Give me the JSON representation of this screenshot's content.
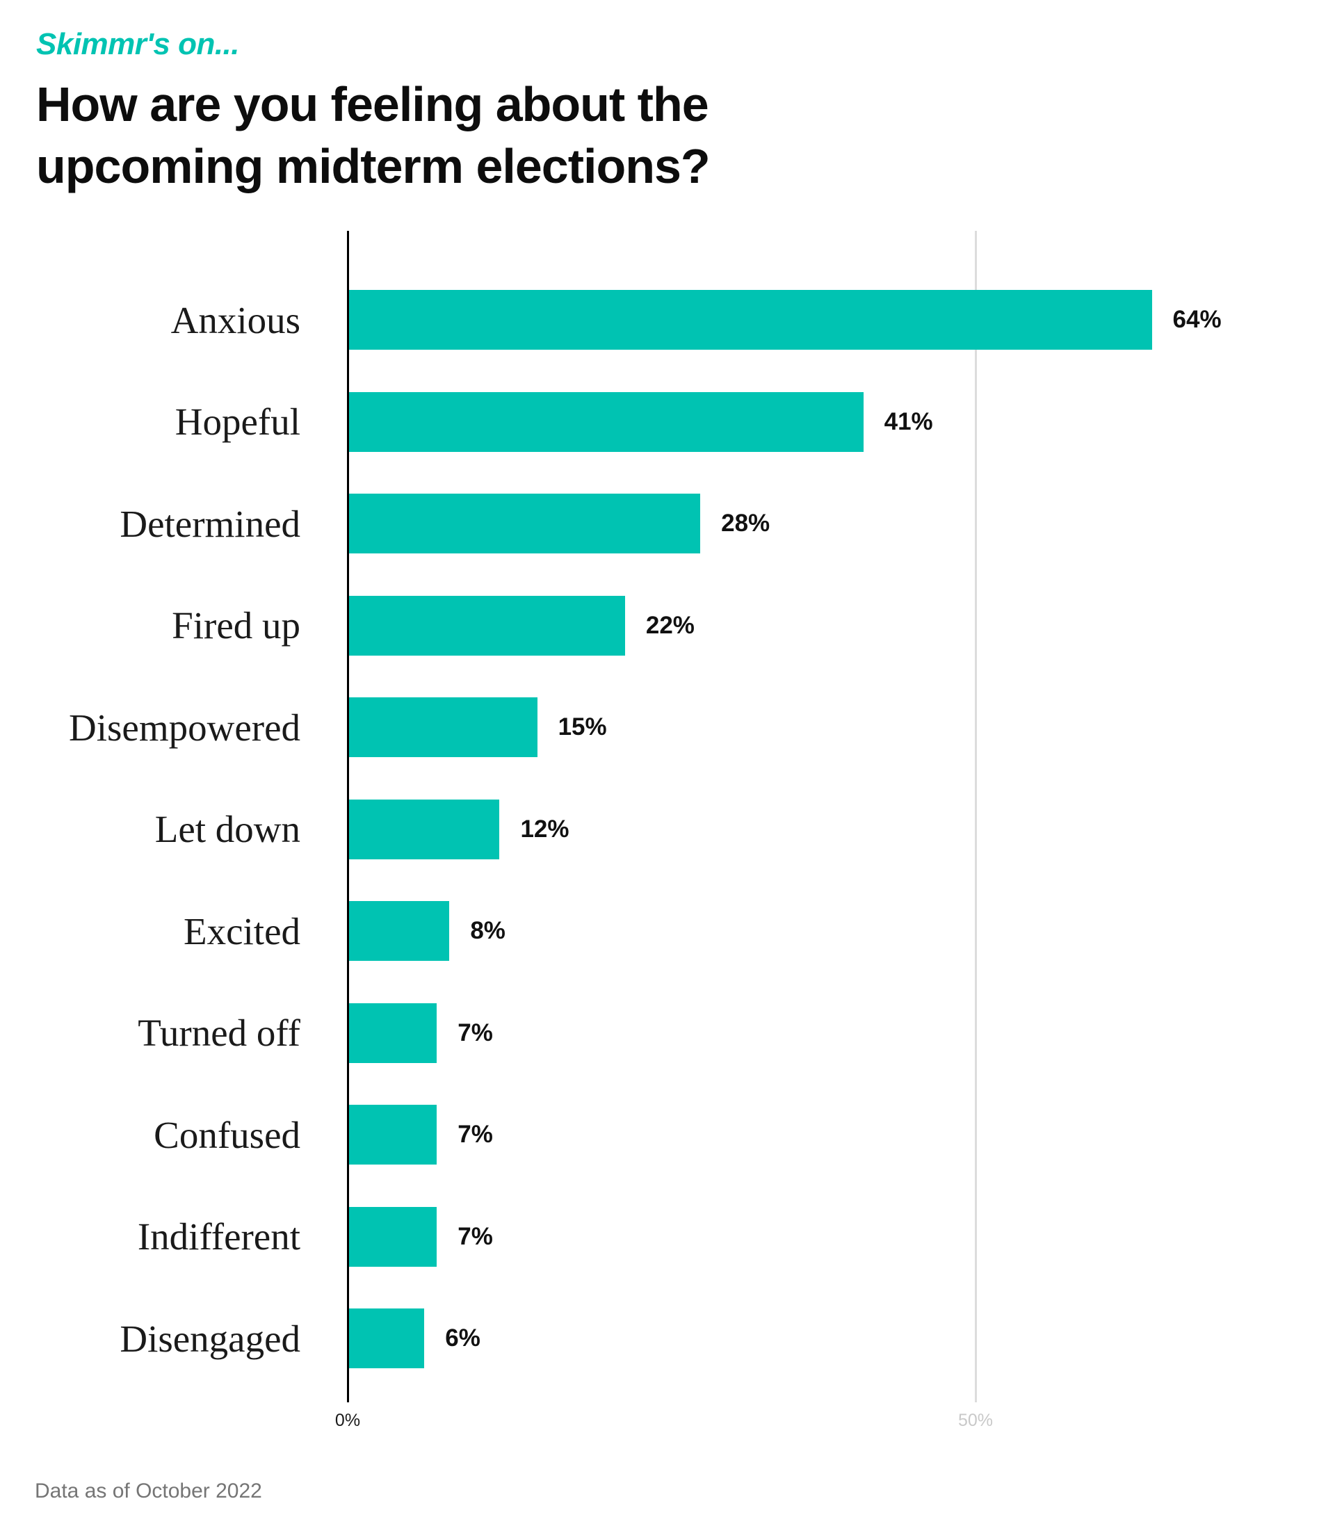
{
  "header": {
    "eyebrow": "Skimmr's on...",
    "title_line1": "How are you feeling about the",
    "title_line2": "upcoming midterm elections?"
  },
  "chart_data": {
    "type": "bar",
    "orientation": "horizontal",
    "title": "How are you feeling about the upcoming midterm elections?",
    "categories": [
      "Anxious",
      "Hopeful",
      "Determined",
      "Fired up",
      "Disempowered",
      "Let down",
      "Excited",
      "Turned off",
      "Confused",
      "Indifferent",
      "Disengaged"
    ],
    "values": [
      64,
      41,
      28,
      22,
      15,
      12,
      8,
      7,
      7,
      7,
      6
    ],
    "value_labels": [
      "64%",
      "41%",
      "28%",
      "22%",
      "15%",
      "12%",
      "8%",
      "7%",
      "7%",
      "7%",
      "6%"
    ],
    "x_ticks": [
      {
        "label": "0%",
        "value": 0
      },
      {
        "label": "50%",
        "value": 50
      }
    ],
    "xlim": [
      0,
      78
    ],
    "grid": "single vertical gridline at 50%",
    "legend": "none",
    "bar_color": "#00c3b2"
  },
  "footer": {
    "note": "Data as of October 2022"
  },
  "colors": {
    "accent_teal": "#00c3b2",
    "title_black": "#0d0d0d",
    "axis_black": "#000000",
    "grid_gray": "#dcdcdc",
    "tick_zero_color": "#1a1a1a",
    "tick_fifty_color": "#c9c9c9",
    "footer_gray": "#757575",
    "background": "#ffffff"
  }
}
